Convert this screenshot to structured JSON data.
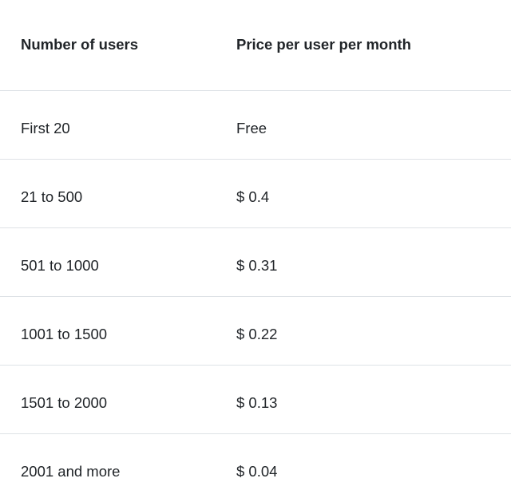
{
  "colors": {
    "text": "#212529",
    "border": "#dee2e6",
    "background": "#ffffff"
  },
  "table": {
    "headers": [
      "Number of users",
      "Price per user per month"
    ],
    "rows": [
      {
        "users": "First 20",
        "price": "Free"
      },
      {
        "users": "21 to 500",
        "price": "$ 0.4"
      },
      {
        "users": "501 to 1000",
        "price": "$ 0.31"
      },
      {
        "users": "1001 to 1500",
        "price": "$ 0.22"
      },
      {
        "users": "1501 to 2000",
        "price": "$ 0.13"
      },
      {
        "users": "2001 and more",
        "price": "$ 0.04"
      }
    ]
  },
  "chart_data": {
    "type": "table",
    "columns": [
      "Number of users",
      "Price per user per month"
    ],
    "rows": [
      [
        "First 20",
        "Free"
      ],
      [
        "21 to 500",
        "$ 0.4"
      ],
      [
        "501 to 1000",
        "$ 0.31"
      ],
      [
        "1001 to 1500",
        "$ 0.22"
      ],
      [
        "1501 to 2000",
        "$ 0.13"
      ],
      [
        "2001 and more",
        "$ 0.04"
      ]
    ],
    "numeric_prices_usd_per_user_per_month": [
      0,
      0.4,
      0.31,
      0.22,
      0.13,
      0.04
    ],
    "title": "",
    "grid": "horizontal row separators only",
    "legend_position": "none"
  }
}
